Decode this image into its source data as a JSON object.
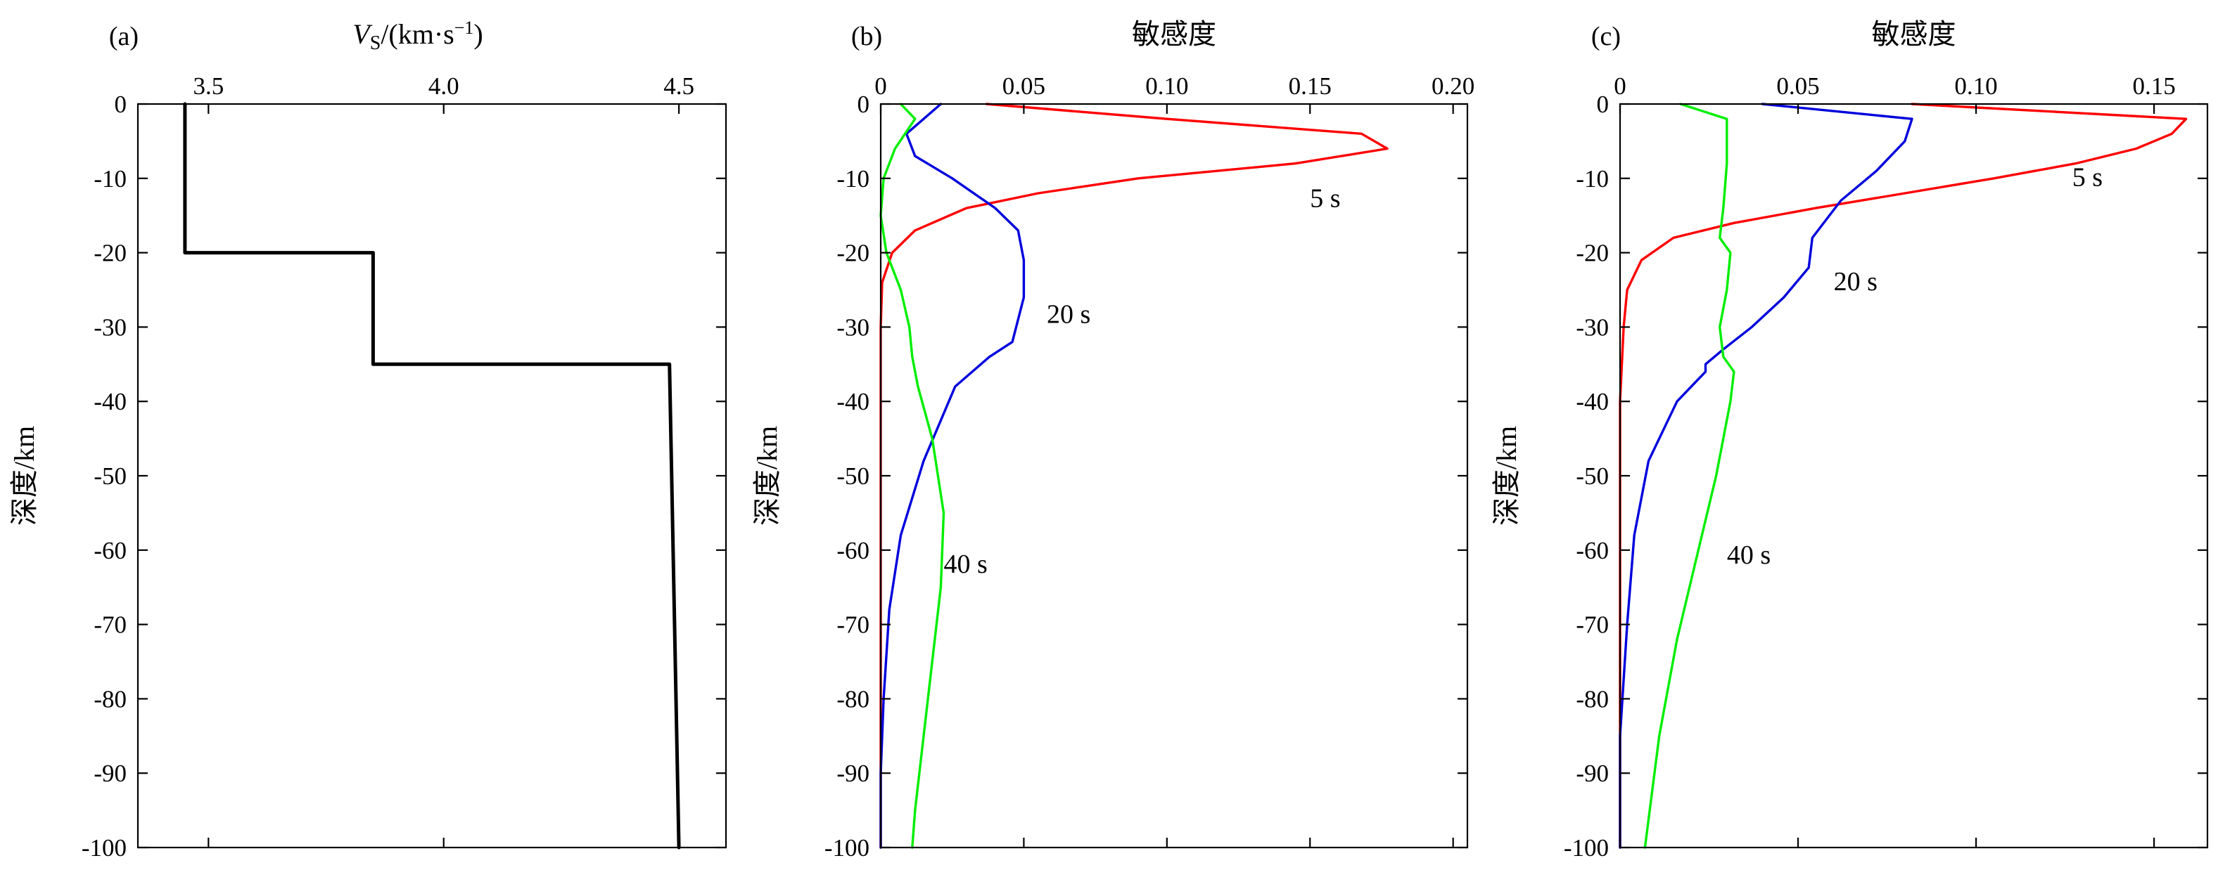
{
  "chart_data": [
    {
      "id": "a",
      "type": "line",
      "panel_label": "(a)",
      "xlabel_italic": "V",
      "xlabel_sub": "S",
      "xlabel_unit": "/(km·s",
      "xlabel_sup": "−1",
      "xlabel_close": ")",
      "ylabel": "深度/km",
      "xlim": [
        3.35,
        4.6
      ],
      "ylim": [
        -100,
        0
      ],
      "xticks": [
        3.5,
        4.0,
        4.5
      ],
      "xtick_labels": [
        "3.5",
        "4.0",
        "4.5"
      ],
      "yticks": [
        0,
        -10,
        -20,
        -30,
        -40,
        -50,
        -60,
        -70,
        -80,
        -90,
        -100
      ],
      "ytick_labels": [
        "0",
        "-10",
        "-20",
        "-30",
        "-40",
        "-50",
        "-60",
        "-70",
        "-80",
        "-90",
        "-100"
      ],
      "series": [
        {
          "color": "#000000",
          "x": [
            3.45,
            3.45,
            3.85,
            3.85,
            4.48,
            4.5
          ],
          "y": [
            0,
            -20,
            -20,
            -35,
            -35,
            -100
          ]
        }
      ]
    },
    {
      "id": "b",
      "type": "line",
      "panel_label": "(b)",
      "xlabel": "敏感度",
      "ylabel": "深度/km",
      "xlim": [
        0,
        0.205
      ],
      "ylim": [
        -100,
        0
      ],
      "xticks": [
        0,
        0.05,
        0.1,
        0.15,
        0.2
      ],
      "xtick_labels": [
        "0",
        "0.05",
        "0.10",
        "0.15",
        "0.20"
      ],
      "yticks": [
        0,
        -10,
        -20,
        -30,
        -40,
        -50,
        -60,
        -70,
        -80,
        -90,
        -100
      ],
      "ytick_labels": [
        "0",
        "-10",
        "-20",
        "-30",
        "-40",
        "-50",
        "-60",
        "-70",
        "-80",
        "-90",
        "-100"
      ],
      "series": [
        {
          "name": "5 s",
          "color": "#ff0000",
          "x": [
            0.037,
            0.1,
            0.168,
            0.177,
            0.145,
            0.09,
            0.055,
            0.03,
            0.012,
            0.004,
            0.0005,
            0.0,
            0.0,
            0.0
          ],
          "y": [
            0,
            -2,
            -4,
            -6,
            -8,
            -10,
            -12,
            -14,
            -17,
            -20,
            -24,
            -30,
            -50,
            -100
          ]
        },
        {
          "name": "20 s",
          "color": "#0000dd",
          "x": [
            0.021,
            0.015,
            0.009,
            0.012,
            0.025,
            0.04,
            0.048,
            0.05,
            0.05,
            0.046,
            0.038,
            0.026,
            0.015,
            0.007,
            0.003,
            0.001,
            0.0,
            0.0
          ],
          "y": [
            0,
            -2,
            -4,
            -7,
            -10,
            -14,
            -17,
            -21,
            -26,
            -32,
            -34,
            -38,
            -48,
            -58,
            -68,
            -80,
            -90,
            -100
          ]
        },
        {
          "name": "40 s",
          "color": "#00ee00",
          "x": [
            0.007,
            0.012,
            0.005,
            0.001,
            0.0,
            0.002,
            0.007,
            0.01,
            0.011,
            0.013,
            0.018,
            0.022,
            0.021,
            0.018,
            0.015,
            0.012,
            0.011
          ],
          "y": [
            0,
            -2,
            -6,
            -10,
            -15,
            -20,
            -25,
            -30,
            -34,
            -38,
            -45,
            -55,
            -65,
            -75,
            -85,
            -95,
            -100
          ]
        }
      ],
      "annotations": [
        {
          "text": "5 s",
          "x": 0.15,
          "y": -12.6
        },
        {
          "text": "20 s",
          "x": 0.058,
          "y": -28.2
        },
        {
          "text": "40 s",
          "x": 0.022,
          "y": -61.8
        }
      ]
    },
    {
      "id": "c",
      "type": "line",
      "panel_label": "(c)",
      "xlabel": "敏感度",
      "ylabel": "深度/km",
      "xlim": [
        0,
        0.165
      ],
      "ylim": [
        -100,
        0
      ],
      "xticks": [
        0,
        0.05,
        0.1,
        0.15
      ],
      "xtick_labels": [
        "0",
        "0.05",
        "0.10",
        "0.15"
      ],
      "yticks": [
        0,
        -10,
        -20,
        -30,
        -40,
        -50,
        -60,
        -70,
        -80,
        -90,
        -100
      ],
      "ytick_labels": [
        "0",
        "-10",
        "-20",
        "-30",
        "-40",
        "-50",
        "-60",
        "-70",
        "-80",
        "-90",
        "-100"
      ],
      "series": [
        {
          "name": "5 s",
          "color": "#ff0000",
          "x": [
            0.082,
            0.159,
            0.155,
            0.145,
            0.128,
            0.105,
            0.08,
            0.055,
            0.032,
            0.015,
            0.006,
            0.002,
            0.001,
            0.0,
            0.0
          ],
          "y": [
            0,
            -2,
            -4,
            -6,
            -8,
            -10,
            -12,
            -14,
            -16,
            -18,
            -21,
            -25,
            -30,
            -40,
            -100
          ]
        },
        {
          "name": "20 s",
          "color": "#0000dd",
          "x": [
            0.04,
            0.082,
            0.08,
            0.072,
            0.062,
            0.054,
            0.053,
            0.046,
            0.037,
            0.029,
            0.024,
            0.024,
            0.016,
            0.008,
            0.004,
            0.002,
            0.0,
            0.0
          ],
          "y": [
            0,
            -2,
            -5,
            -9,
            -13,
            -18,
            -22,
            -26,
            -30,
            -33,
            -35,
            -36,
            -40,
            -48,
            -58,
            -70,
            -85,
            -100
          ]
        },
        {
          "name": "40 s",
          "color": "#00ee00",
          "x": [
            0.017,
            0.03,
            0.03,
            0.029,
            0.028,
            0.031,
            0.03,
            0.028,
            0.029,
            0.032,
            0.031,
            0.027,
            0.022,
            0.016,
            0.011,
            0.007
          ],
          "y": [
            0,
            -2,
            -8,
            -14,
            -18,
            -20,
            -25,
            -30,
            -34,
            -36,
            -40,
            -50,
            -60,
            -72,
            -85,
            -100
          ]
        }
      ],
      "annotations": [
        {
          "text": "5 s",
          "x": 0.127,
          "y": -9.8
        },
        {
          "text": "20 s",
          "x": 0.06,
          "y": -23.8
        },
        {
          "text": "40 s",
          "x": 0.03,
          "y": -60.6
        }
      ]
    }
  ]
}
